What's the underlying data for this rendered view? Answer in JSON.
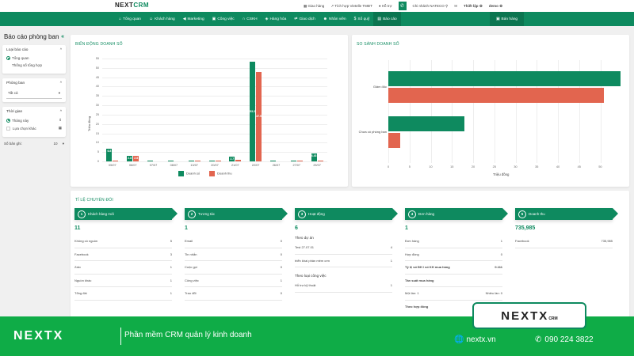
{
  "header": {
    "logo": "NEXT",
    "logo_accent": "CRM",
    "links": [
      {
        "icon": "store-icon",
        "glyph": "▦",
        "label": "Giao hàng"
      },
      {
        "icon": "link-icon",
        "glyph": "↗",
        "label": "Tích hợp Vietelle TMĐT"
      },
      {
        "icon": "help-icon",
        "glyph": "●",
        "label": "Hỗ trợ"
      }
    ],
    "phone_glyph": "✆",
    "branch": "Chi nhánh NATECO",
    "branch_glyph": "⚲",
    "mail_glyph": "✉",
    "settings": "Thiết lập",
    "user": "demo",
    "settings_glyph": "⚙",
    "user_glyph": "⚙"
  },
  "nav": {
    "items": [
      {
        "icon": "home-icon",
        "glyph": "⌂",
        "label": "Tổng quan",
        "active": false
      },
      {
        "icon": "customers-icon",
        "glyph": "☺",
        "label": "Khách hàng",
        "active": false
      },
      {
        "icon": "megaphone-icon",
        "glyph": "◀",
        "label": "Marketing",
        "active": false
      },
      {
        "icon": "briefcase-icon",
        "glyph": "▣",
        "label": "Công việc",
        "active": false
      },
      {
        "icon": "headset-icon",
        "glyph": "∩",
        "label": "CSKH",
        "active": false
      },
      {
        "icon": "box-icon",
        "glyph": "◈",
        "label": "Hàng hóa",
        "active": false
      },
      {
        "icon": "exchange-icon",
        "glyph": "⇄",
        "label": "Giao dịch",
        "active": false
      },
      {
        "icon": "user-icon",
        "glyph": "☻",
        "label": "Nhân viên",
        "active": false
      },
      {
        "icon": "dollar-icon",
        "glyph": "$",
        "label": "Sổ quỹ",
        "active": false
      },
      {
        "icon": "chart-icon",
        "glyph": "▤",
        "label": "Báo cáo",
        "active": true
      }
    ],
    "sell": {
      "icon": "basket-icon",
      "glyph": "🛍",
      "label": "Bán hàng"
    }
  },
  "sidebar": {
    "title": "Báo cáo phòng ban",
    "collapse_glyph": "«",
    "report_type": {
      "label": "Loại báo cáo",
      "options": [
        {
          "label": "Tổng quan",
          "selected": true
        },
        {
          "label": "Thống số tổng hợp",
          "selected": false
        }
      ]
    },
    "department": {
      "label": "Phòng ban",
      "value": "Tất cả"
    },
    "time": {
      "label": "Thời gian",
      "preset": "Tháng này",
      "custom": "Lựa chọn khác"
    },
    "page_size": {
      "label": "Số bản ghi:",
      "value": "10"
    }
  },
  "chart1": {
    "title": "BIẾN ĐỘNG DOANH SỐ"
  },
  "chart2": {
    "title": "SO SÁNH DOANH SỐ"
  },
  "chart_data": [
    {
      "type": "bar",
      "title": "BIẾN ĐỘNG DOANH SỐ",
      "xlabel": "",
      "ylabel": "Triệu đồng",
      "ylim": [
        0,
        55
      ],
      "yticks": [
        0,
        5,
        10,
        15,
        20,
        25,
        30,
        35,
        40,
        45,
        50,
        55
      ],
      "categories": [
        "05/07",
        "06/07",
        "07/07",
        "08/07",
        "13/07",
        "20/07",
        "21/07",
        "22/07",
        "26/07",
        "27/07",
        "29/07"
      ],
      "series": [
        {
          "name": "Doanh số",
          "color": "#0e8a5f",
          "values": [
            6.8,
            2.8,
            0.5,
            0.5,
            0.3,
            0.5,
            2.7,
            53.25,
            0.3,
            0.3,
            4.43
          ],
          "labels": [
            "6.8",
            "2.8",
            "",
            "",
            "",
            "",
            "2.7",
            "53.25",
            "",
            "",
            "4.43"
          ]
        },
        {
          "name": "Doanh thu",
          "color": "#e2654f",
          "values": [
            0.4,
            2.8,
            0,
            0,
            0.3,
            0.3,
            0.8,
            47.96,
            0,
            0.3,
            0.6
          ],
          "labels": [
            "",
            "2.8",
            "",
            "",
            "",
            "",
            "",
            "47.96",
            "",
            "",
            ""
          ]
        }
      ],
      "grid": true,
      "legend_position": "bottom"
    },
    {
      "type": "bar",
      "orientation": "horizontal",
      "title": "SO SÁNH DOANH SỐ",
      "xlabel": "Triệu đồng",
      "ylabel": "",
      "xlim": [
        0,
        55
      ],
      "xticks": [
        0,
        5,
        10,
        15,
        20,
        25,
        30,
        35,
        40,
        45,
        50
      ],
      "categories": [
        "Giám đốc",
        "Chưa có phòng ban"
      ],
      "series": [
        {
          "name": "Doanh số",
          "color": "#0e8a5f",
          "values": [
            54.7,
            18
          ]
        },
        {
          "name": "Doanh thu",
          "color": "#e2654f",
          "values": [
            50.8,
            2.8
          ]
        }
      ],
      "grid": true
    }
  ],
  "conversion": {
    "title": "TỈ LỆ CHUYỂN ĐỔI",
    "stages": [
      {
        "num": "1",
        "label": "Khách hàng mới",
        "total": "11",
        "rows": [
          {
            "label": "Không có nguồn",
            "value": "5"
          },
          {
            "label": "Facebook",
            "value": "3"
          },
          {
            "label": "Zalo",
            "value": "1"
          },
          {
            "label": "Nguồn khác",
            "value": "1"
          },
          {
            "label": "Tổng đài",
            "value": "1"
          }
        ]
      },
      {
        "num": "2",
        "label": "Tương tác",
        "total": "1",
        "rows": [
          {
            "label": "Email",
            "value": "0"
          },
          {
            "label": "Tin nhắn",
            "value": "0"
          },
          {
            "label": "Cuộc gọi",
            "value": "0"
          },
          {
            "label": "Công việc",
            "value": "1"
          },
          {
            "label": "Trao đổi",
            "value": "0"
          }
        ]
      },
      {
        "num": "3",
        "label": "Hoạt động",
        "total": "6",
        "group1": "Theo dự án",
        "rows1": [
          {
            "label": "Test 27.07.01",
            "value": "4"
          },
          {
            "label": "triển khai phần mềm crm",
            "value": "1"
          }
        ],
        "group2": "Theo loại công việc",
        "rows2": [
          {
            "label": "Hỗ trợ kỹ thuật",
            "value": "1"
          }
        ]
      },
      {
        "num": "4",
        "label": "Đơn hàng",
        "total": "1",
        "rows": [
          {
            "label": "Đơn hàng",
            "value": "1"
          },
          {
            "label": "Hợp đồng",
            "value": "0"
          },
          {
            "label": "Tỷ lệ số ĐH / số KH mua hàng",
            "value": "0.111"
          }
        ],
        "freq_label": "Tần suất mua hàng",
        "freq_left": "Một lần: 1",
        "freq_right": "Nhiều lần: 0",
        "contract_label": "Theo hợp đồng"
      },
      {
        "num": "5",
        "label": "Doanh thu",
        "total": "735,985",
        "rows": [
          {
            "label": "Facebook",
            "value": "735,985"
          }
        ]
      }
    ]
  },
  "footer": {
    "logo": "NEXTX",
    "tagline": "Phần mềm CRM quản lý kinh doanh",
    "site": "nextx.vn",
    "phone": "090 224 3822",
    "badge_logo": "NEXTX",
    "badge_crm": "CRM"
  }
}
